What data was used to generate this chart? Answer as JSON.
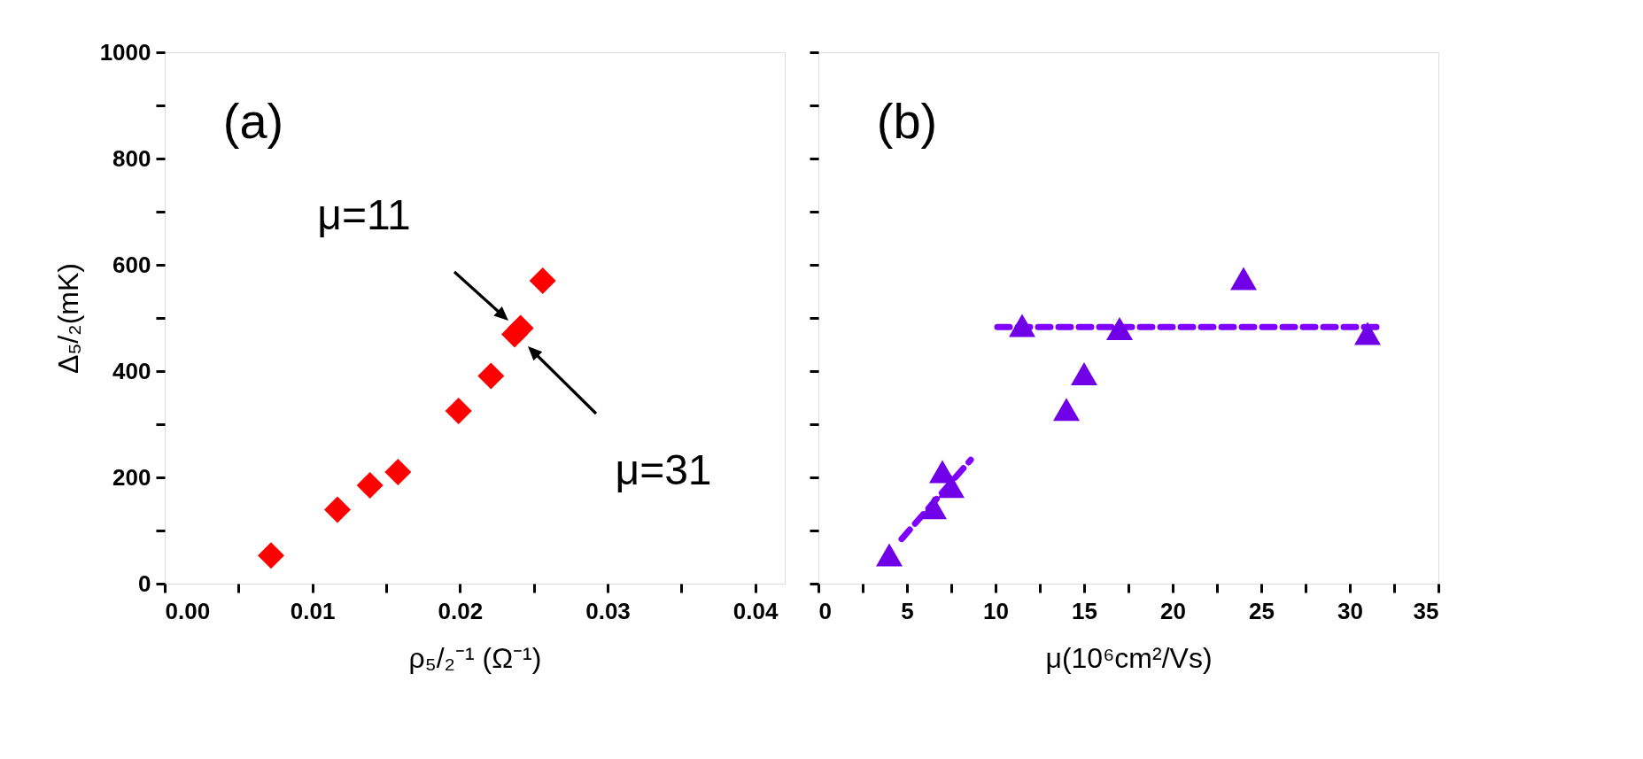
{
  "chart_data": [
    {
      "type": "scatter",
      "xlabel": "ρ₅/₂⁻¹ (Ω⁻¹)",
      "ylabel": "Δ₅/₂(mK)",
      "xlim": [
        0,
        0.042
      ],
      "ylim": [
        0,
        1000
      ],
      "xticks": [
        {
          "value": 0,
          "label": "0.00"
        },
        {
          "value": 0.005,
          "label": null
        },
        {
          "value": 0.01,
          "label": "0.01"
        },
        {
          "value": 0.015,
          "label": null
        },
        {
          "value": 0.02,
          "label": "0.02"
        },
        {
          "value": 0.025,
          "label": null
        },
        {
          "value": 0.03,
          "label": "0.03"
        },
        {
          "value": 0.035,
          "label": null
        },
        {
          "value": 0.04,
          "label": "0.04"
        }
      ],
      "yticks": [
        0,
        {
          "value": 100,
          "label": null
        },
        200,
        {
          "value": 300,
          "label": null
        },
        400,
        {
          "value": 500,
          "label": null
        },
        600,
        {
          "value": 700,
          "label": null
        },
        800,
        {
          "value": 900,
          "label": null
        },
        1000
      ],
      "grid": false,
      "series": [
        {
          "marker": "diamond",
          "color": "#ff0000",
          "x": [
            0.0072,
            0.0117,
            0.0139,
            0.0158,
            0.0199,
            0.0221,
            0.0237,
            0.0241,
            0.0256
          ],
          "values": [
            53,
            139,
            185,
            210,
            325,
            391,
            469,
            481,
            570
          ]
        }
      ],
      "annotations": [
        "(a)",
        "μ=11",
        "μ=31"
      ]
    },
    {
      "type": "scatter",
      "xlabel": "μ(10⁶cm²/Vs)",
      "xlim": [
        0,
        35
      ],
      "ylim": [
        0,
        1000
      ],
      "xticks": [
        0,
        {
          "value": 2.5,
          "label": null
        },
        5,
        {
          "value": 7.5,
          "label": null
        },
        10,
        {
          "value": 12.5,
          "label": null
        },
        15,
        {
          "value": 17.5,
          "label": null
        },
        20,
        {
          "value": 22.5,
          "label": null
        },
        25,
        {
          "value": 27.5,
          "label": null
        },
        30,
        {
          "value": 32.5,
          "label": null
        },
        35
      ],
      "yticks": [
        0,
        {
          "value": 100,
          "label": null
        },
        200,
        {
          "value": 300,
          "label": null
        },
        400,
        {
          "value": 500,
          "label": null
        },
        600,
        {
          "value": 700,
          "label": null
        },
        800,
        {
          "value": 900,
          "label": null
        },
        1000
      ],
      "tick_labels": "x",
      "grid": false,
      "series": [
        {
          "type": "line",
          "marker": "none",
          "line_style": "dashed",
          "color": "#8000ff",
          "x": [
            4.7,
            8.6
          ],
          "values": [
            84,
            233
          ]
        },
        {
          "type": "line",
          "marker": "none",
          "line_style": "dashed",
          "color": "#8000ff",
          "x": [
            10.1,
            31.9
          ],
          "values": [
            483,
            483
          ]
        },
        {
          "marker": "triangle",
          "color": "#7000e8",
          "x": [
            4.0,
            6.5,
            7.0,
            7.5,
            11.5,
            14.0,
            15.0,
            17.0,
            24.0,
            31.0
          ],
          "values": [
            54,
            143,
            211,
            183,
            486,
            328,
            395,
            480,
            574,
            471
          ]
        }
      ],
      "annotations": [
        "(b)"
      ]
    }
  ]
}
